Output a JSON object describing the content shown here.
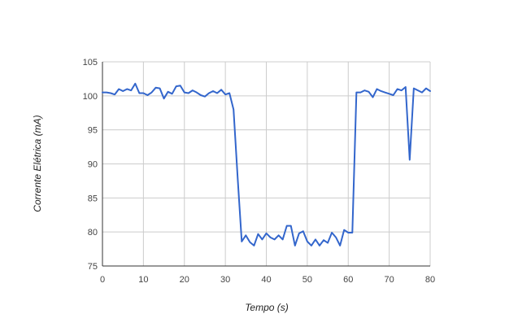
{
  "chart_data": {
    "type": "line",
    "title": "",
    "xlabel": "Tempo (s)",
    "ylabel": "Corrente Elétrica (mA)",
    "xlim": [
      0,
      80
    ],
    "ylim": [
      75,
      105
    ],
    "x_ticks": [
      0,
      10,
      20,
      30,
      40,
      50,
      60,
      70,
      80
    ],
    "y_ticks": [
      75,
      80,
      85,
      90,
      95,
      100,
      105
    ],
    "grid": true,
    "legend": "none",
    "series": [
      {
        "color": "#3366cc",
        "x": [
          0,
          1,
          2,
          3,
          4,
          5,
          6,
          7,
          8,
          9,
          10,
          11,
          12,
          13,
          14,
          15,
          16,
          17,
          18,
          19,
          20,
          21,
          22,
          23,
          24,
          25,
          26,
          27,
          28,
          29,
          30,
          31,
          32,
          33,
          34,
          35,
          36,
          37,
          38,
          39,
          40,
          41,
          42,
          43,
          44,
          45,
          46,
          47,
          48,
          49,
          50,
          51,
          52,
          53,
          54,
          55,
          56,
          57,
          58,
          59,
          60,
          61,
          62,
          63,
          64,
          65,
          66,
          67,
          68,
          69,
          70,
          71,
          72,
          73,
          74,
          75,
          76,
          77,
          78,
          79,
          80
        ],
        "y": [
          100.5,
          100.5,
          100.4,
          100.2,
          101.0,
          100.7,
          101.0,
          100.8,
          101.8,
          100.4,
          100.4,
          100.1,
          100.5,
          101.2,
          101.1,
          99.6,
          100.6,
          100.3,
          101.4,
          101.5,
          100.5,
          100.4,
          100.8,
          100.5,
          100.1,
          99.9,
          100.4,
          100.7,
          100.4,
          100.9,
          100.2,
          100.4,
          98.0,
          88.0,
          78.6,
          79.5,
          78.5,
          78.0,
          79.7,
          78.9,
          79.8,
          79.2,
          78.9,
          79.5,
          78.9,
          80.9,
          80.9,
          78.0,
          79.8,
          80.1,
          78.6,
          78.0,
          78.9,
          78.0,
          78.8,
          78.4,
          79.9,
          79.2,
          78.0,
          80.3,
          79.9,
          79.9,
          100.5,
          100.5,
          100.8,
          100.6,
          99.8,
          101.0,
          100.7,
          100.5,
          100.3,
          100.1,
          101.0,
          100.8,
          101.3,
          90.6,
          101.1,
          100.8,
          100.5,
          101.1,
          100.7
        ]
      }
    ]
  }
}
